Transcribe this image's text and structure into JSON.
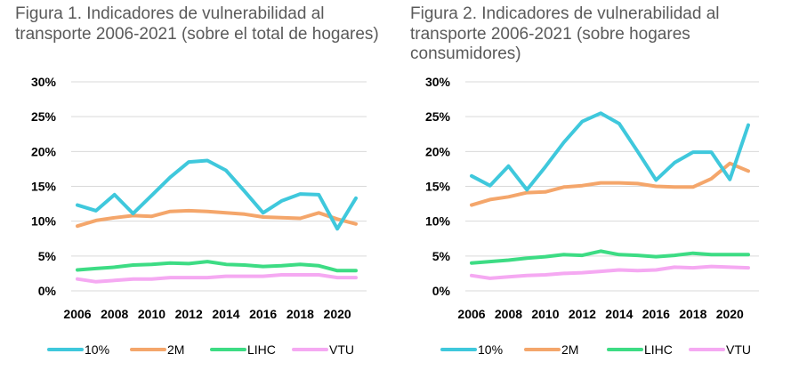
{
  "chart_data": [
    {
      "type": "line",
      "title": "Figura 1. Indicadores de vulnerabilidad al transporte 2006-2021 (sobre el total de hogares)",
      "x": [
        2006,
        2007,
        2008,
        2009,
        2010,
        2011,
        2012,
        2013,
        2014,
        2015,
        2016,
        2017,
        2018,
        2019,
        2020,
        2021
      ],
      "x_tick_labels": [
        "2006",
        "2008",
        "2010",
        "2012",
        "2014",
        "2016",
        "2018",
        "2020"
      ],
      "y_tick_labels": [
        "0%",
        "5%",
        "10%",
        "15%",
        "20%",
        "25%",
        "30%"
      ],
      "ylim": [
        0,
        30
      ],
      "grid": true,
      "legend_position": "bottom",
      "series": [
        {
          "name": "10%",
          "color": "#3fc8dc",
          "values": [
            12.3,
            11.5,
            13.8,
            11.1,
            13.7,
            16.3,
            18.5,
            18.7,
            17.3,
            14.3,
            11.2,
            12.9,
            13.9,
            13.8,
            8.9,
            13.3
          ]
        },
        {
          "name": "2M",
          "color": "#f4a66b",
          "values": [
            9.3,
            10.1,
            10.5,
            10.8,
            10.7,
            11.4,
            11.5,
            11.4,
            11.2,
            11.0,
            10.6,
            10.5,
            10.4,
            11.2,
            10.3,
            9.6
          ]
        },
        {
          "name": "LIHC",
          "color": "#3ddc84",
          "values": [
            3.0,
            3.2,
            3.4,
            3.7,
            3.8,
            4.0,
            3.9,
            4.2,
            3.8,
            3.7,
            3.5,
            3.6,
            3.8,
            3.6,
            2.9,
            2.9
          ]
        },
        {
          "name": "VTU",
          "color": "#f5a9f2",
          "values": [
            1.7,
            1.3,
            1.5,
            1.7,
            1.7,
            1.9,
            1.9,
            1.9,
            2.1,
            2.1,
            2.1,
            2.3,
            2.3,
            2.3,
            1.9,
            1.9
          ]
        }
      ]
    },
    {
      "type": "line",
      "title": "Figura 2. Indicadores de vulnerabilidad al transporte 2006-2021 (sobre hogares consumidores)",
      "x": [
        2006,
        2007,
        2008,
        2009,
        2010,
        2011,
        2012,
        2013,
        2014,
        2015,
        2016,
        2017,
        2018,
        2019,
        2020,
        2021
      ],
      "x_tick_labels": [
        "2006",
        "2008",
        "2010",
        "2012",
        "2014",
        "2016",
        "2018",
        "2020"
      ],
      "y_tick_labels": [
        "0%",
        "5%",
        "10%",
        "15%",
        "20%",
        "25%",
        "30%"
      ],
      "ylim": [
        0,
        30
      ],
      "grid": true,
      "legend_position": "bottom",
      "series": [
        {
          "name": "10%",
          "color": "#3fc8dc",
          "values": [
            16.5,
            15.1,
            17.9,
            14.5,
            17.8,
            21.3,
            24.3,
            25.5,
            24.0,
            20.0,
            15.9,
            18.4,
            19.9,
            19.9,
            16.0,
            23.8
          ]
        },
        {
          "name": "2M",
          "color": "#f4a66b",
          "values": [
            12.3,
            13.1,
            13.5,
            14.1,
            14.2,
            14.9,
            15.1,
            15.5,
            15.5,
            15.4,
            15.0,
            14.9,
            14.9,
            16.1,
            18.3,
            17.2
          ]
        },
        {
          "name": "LIHC",
          "color": "#3ddc84",
          "values": [
            4.0,
            4.2,
            4.4,
            4.7,
            4.9,
            5.2,
            5.1,
            5.7,
            5.2,
            5.1,
            4.9,
            5.1,
            5.4,
            5.2,
            5.2,
            5.2
          ]
        },
        {
          "name": "VTU",
          "color": "#f5a9f2",
          "values": [
            2.2,
            1.8,
            2.0,
            2.2,
            2.3,
            2.5,
            2.6,
            2.8,
            3.0,
            2.9,
            3.0,
            3.4,
            3.3,
            3.5,
            3.4,
            3.3
          ]
        }
      ]
    }
  ]
}
